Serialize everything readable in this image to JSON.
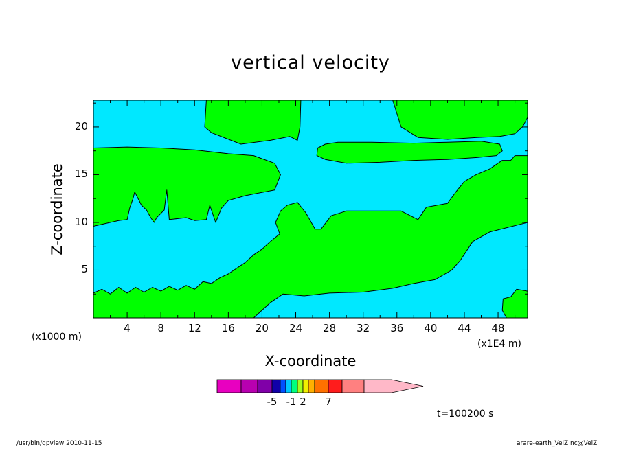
{
  "chart_data": {
    "type": "heatmap",
    "title": "vertical velocity",
    "xlabel": "X-coordinate",
    "ylabel": "Z-coordinate",
    "x_unit": "(x1E4 m)",
    "y_unit": "(x1000 m)",
    "xlim": [
      0,
      51.5
    ],
    "ylim": [
      0,
      22.8
    ],
    "x_ticks": [
      "4",
      "8",
      "12",
      "16",
      "20",
      "24",
      "28",
      "32",
      "36",
      "40",
      "44",
      "48"
    ],
    "y_ticks": [
      "5",
      "10",
      "15",
      "20"
    ],
    "background_color": "#00e8ff",
    "colorbar": {
      "colors": [
        "#e800c0",
        "#b800b0",
        "#8000a8",
        "#1000a8",
        "#0050ff",
        "#00c8ff",
        "#00ff7f",
        "#a0ff20",
        "#f0f000",
        "#ffb000",
        "#ff7000",
        "#ff1c1c",
        "#ff8080",
        "#ffb8c8"
      ],
      "labels": [
        "-5",
        "-1",
        "2",
        "7"
      ]
    },
    "regions": [
      {
        "color": "#00ff00",
        "points": [
          [
            13.4,
            22.8
          ],
          [
            13.2,
            20.0
          ],
          [
            14.0,
            19.4
          ],
          [
            17.5,
            18.2
          ],
          [
            21.0,
            18.6
          ],
          [
            23.3,
            19.0
          ],
          [
            24.2,
            18.6
          ],
          [
            24.5,
            20.0
          ],
          [
            24.6,
            22.8
          ]
        ]
      },
      {
        "color": "#00ff00",
        "points": [
          [
            35.5,
            22.8
          ],
          [
            36.5,
            20.0
          ],
          [
            38.5,
            18.9
          ],
          [
            42.0,
            18.7
          ],
          [
            45.5,
            18.9
          ],
          [
            48.2,
            19.0
          ],
          [
            50.0,
            19.3
          ],
          [
            50.9,
            20.0
          ],
          [
            51.5,
            21.0
          ],
          [
            51.5,
            22.8
          ]
        ]
      },
      {
        "color": "#00ff00",
        "points": [
          [
            26.5,
            17.0
          ],
          [
            27.5,
            16.6
          ],
          [
            30.0,
            16.2
          ],
          [
            34.0,
            16.3
          ],
          [
            38.0,
            16.5
          ],
          [
            42.0,
            16.6
          ],
          [
            45.5,
            16.8
          ],
          [
            47.8,
            17.0
          ],
          [
            48.5,
            17.5
          ],
          [
            48.2,
            18.2
          ],
          [
            46.0,
            18.5
          ],
          [
            42.0,
            18.4
          ],
          [
            38.0,
            18.3
          ],
          [
            33.0,
            18.4
          ],
          [
            29.0,
            18.4
          ],
          [
            27.5,
            18.2
          ],
          [
            26.6,
            17.8
          ]
        ]
      },
      {
        "color": "#00ff00",
        "points": [
          [
            0,
            17.8
          ],
          [
            4.0,
            17.9
          ],
          [
            8.0,
            17.8
          ],
          [
            12.0,
            17.6
          ],
          [
            16.0,
            17.2
          ],
          [
            19.0,
            17.0
          ],
          [
            21.5,
            16.2
          ],
          [
            22.2,
            15.0
          ],
          [
            21.5,
            13.4
          ],
          [
            18.0,
            12.8
          ],
          [
            16.0,
            12.3
          ],
          [
            15.2,
            11.5
          ],
          [
            14.5,
            10.0
          ],
          [
            13.8,
            11.8
          ],
          [
            13.4,
            10.3
          ],
          [
            12.0,
            10.2
          ],
          [
            11.0,
            10.5
          ],
          [
            9.0,
            10.3
          ],
          [
            8.7,
            13.4
          ],
          [
            8.4,
            11.3
          ],
          [
            7.5,
            10.5
          ],
          [
            7.2,
            10.0
          ],
          [
            6.8,
            10.5
          ],
          [
            6.3,
            11.3
          ],
          [
            5.7,
            11.8
          ],
          [
            4.9,
            13.2
          ],
          [
            4.7,
            12.5
          ],
          [
            4.3,
            11.5
          ],
          [
            4.0,
            10.3
          ],
          [
            3.0,
            10.2
          ],
          [
            2.0,
            10.0
          ],
          [
            0,
            9.6
          ]
        ]
      },
      {
        "color": "#00ff00",
        "points": [
          [
            0,
            2.6
          ],
          [
            1.0,
            3.0
          ],
          [
            2.0,
            2.5
          ],
          [
            3.0,
            3.2
          ],
          [
            4.0,
            2.6
          ],
          [
            5.0,
            3.2
          ],
          [
            6.0,
            2.7
          ],
          [
            7.0,
            3.2
          ],
          [
            8.0,
            2.8
          ],
          [
            9.0,
            3.3
          ],
          [
            10.0,
            2.9
          ],
          [
            11.0,
            3.4
          ],
          [
            12.0,
            3.0
          ],
          [
            13.0,
            3.8
          ],
          [
            14.0,
            3.6
          ],
          [
            15.0,
            4.2
          ],
          [
            16.0,
            4.6
          ],
          [
            17.0,
            5.2
          ],
          [
            18.0,
            5.8
          ],
          [
            19.0,
            6.6
          ],
          [
            20.0,
            7.2
          ],
          [
            21.0,
            8.0
          ],
          [
            22.1,
            8.8
          ],
          [
            21.6,
            10.0
          ],
          [
            22.2,
            11.2
          ],
          [
            23.0,
            11.8
          ],
          [
            24.2,
            12.1
          ],
          [
            25.2,
            11.0
          ],
          [
            26.3,
            9.3
          ],
          [
            27.0,
            9.3
          ],
          [
            28.2,
            10.7
          ],
          [
            30.0,
            11.2
          ],
          [
            33.0,
            11.2
          ],
          [
            36.5,
            11.2
          ],
          [
            38.5,
            10.3
          ],
          [
            39.5,
            11.6
          ],
          [
            42.0,
            12.0
          ],
          [
            43.0,
            13.2
          ],
          [
            44.0,
            14.3
          ],
          [
            45.4,
            15.0
          ],
          [
            47.0,
            15.6
          ],
          [
            48.5,
            16.5
          ],
          [
            49.5,
            16.5
          ],
          [
            50.0,
            17.0
          ],
          [
            51.5,
            17.0
          ],
          [
            51.5,
            10.0
          ],
          [
            47.0,
            9.0
          ],
          [
            45.0,
            8.0
          ],
          [
            43.5,
            6.0
          ],
          [
            42.5,
            5.0
          ],
          [
            40.5,
            4.0
          ],
          [
            38.0,
            3.6
          ],
          [
            35.5,
            3.1
          ],
          [
            32.0,
            2.7
          ],
          [
            28.0,
            2.6
          ],
          [
            25.0,
            2.3
          ],
          [
            22.5,
            2.5
          ],
          [
            21.0,
            1.6
          ],
          [
            20.0,
            0.8
          ],
          [
            19.0,
            0
          ],
          [
            0,
            0
          ]
        ]
      },
      {
        "color": "#00ff00",
        "points": [
          [
            48.6,
            2.0
          ],
          [
            49.5,
            2.2
          ],
          [
            50.2,
            3.0
          ],
          [
            51.5,
            2.8
          ],
          [
            51.5,
            0
          ],
          [
            49.0,
            0
          ],
          [
            48.5,
            0.8
          ]
        ]
      }
    ]
  },
  "footer": {
    "left": "/usr/bin/gpview   2010-11-15",
    "right": "arare-earth_VelZ.nc@VelZ",
    "time": "t=100200 s"
  }
}
